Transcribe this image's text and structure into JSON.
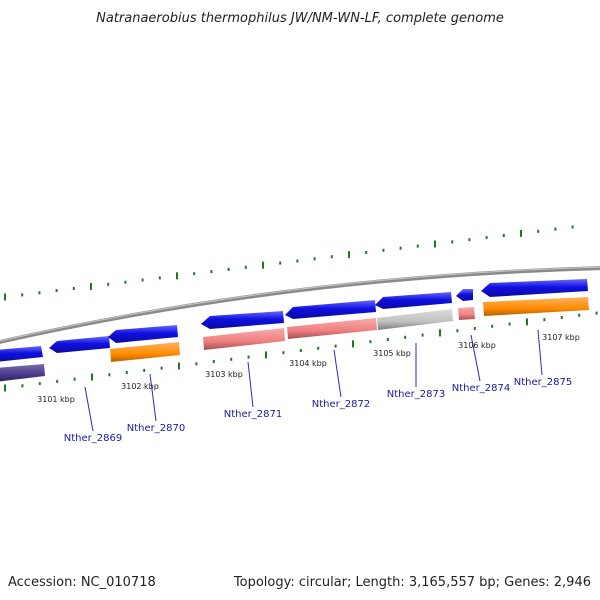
{
  "title": "Natranaerobius thermophilus JW/NM-WN-LF, complete genome",
  "footer": {
    "accession": "Accession: NC_010718",
    "summary": "Topology: circular; Length: 3,165,557 bp; Genes: 2,946"
  },
  "ticks": [
    "3101 kbp",
    "3102 kbp",
    "3103 kbp",
    "3104 kbp",
    "3105 kbp",
    "3106 kbp",
    "3107 kbp"
  ],
  "genes": [
    "Nther_2869",
    "Nther_2870",
    "Nther_2871",
    "Nther_2872",
    "Nther_2873",
    "Nther_2874",
    "Nther_2875"
  ],
  "colors": {
    "gene_forward": "#1010e0",
    "cds_orange": "#ff8c00",
    "cds_pink": "#f08080",
    "cds_grey": "#c0c0c0",
    "cds_purple": "#4b3a8a",
    "gc_skew": "#1f7a1f",
    "backbone": "#808080",
    "label": "#1a1aa6"
  }
}
